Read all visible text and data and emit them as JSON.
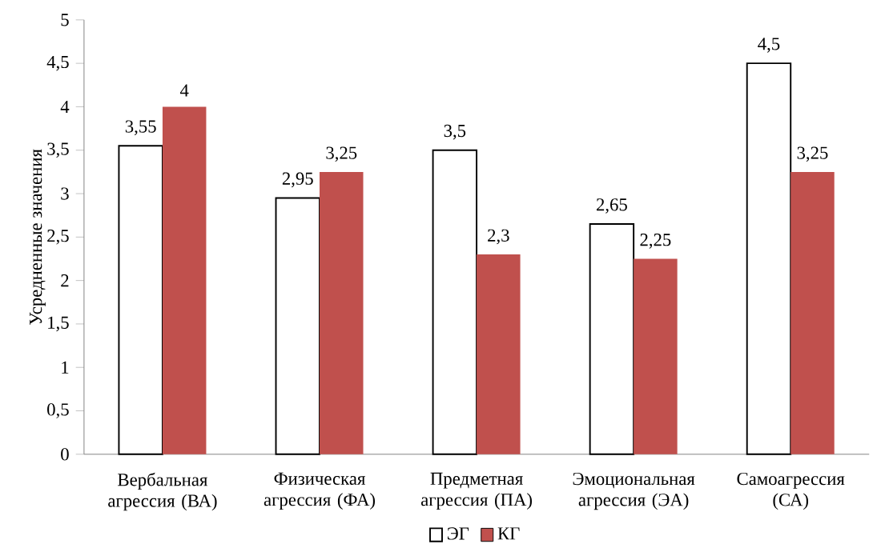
{
  "chart_data": {
    "type": "bar",
    "categories": [
      "Вербальная агрессия (ВА)",
      "Физическая агрессия (ФА)",
      "Предметная агрессия (ПА)",
      "Эмоциональная агрессия (ЭА)",
      "Самоагрессия (СА)"
    ],
    "series": [
      {
        "name": "ЭГ",
        "color": "#000000",
        "values": [
          3.55,
          2.95,
          3.5,
          2.65,
          4.5
        ],
        "value_labels": [
          "3,55",
          "2,95",
          "3,5",
          "2,65",
          "4,5"
        ]
      },
      {
        "name": "КГ",
        "color": "#c0504d",
        "values": [
          4,
          3.25,
          2.3,
          2.25,
          3.25
        ],
        "value_labels": [
          "4",
          "3,25",
          "2,3",
          "2,25",
          "3,25"
        ]
      }
    ],
    "ylabel": "Усредненные значения",
    "ylim": [
      0,
      5
    ],
    "yticks": [
      0,
      {
        "value": 0.5,
        "label": "0,5"
      },
      1,
      {
        "value": 1.5,
        "label": "1,5"
      },
      2,
      {
        "value": 2.5,
        "label": "2,5"
      },
      3,
      {
        "value": 3.5,
        "label": "3,5"
      },
      4,
      {
        "value": 4.5,
        "label": "4,5"
      },
      5
    ],
    "legend": "bottom"
  }
}
